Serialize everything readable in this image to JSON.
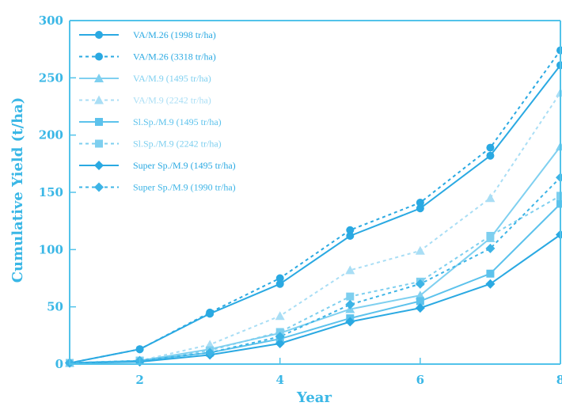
{
  "chart_data": {
    "type": "line",
    "xlabel": "Year",
    "ylabel": "Cumulative Yield (t/ha)",
    "xlim": [
      1,
      8
    ],
    "ylim": [
      0,
      300
    ],
    "xticks": [
      "2",
      "4",
      "6",
      "8"
    ],
    "yticks": [
      "0",
      "50",
      "100",
      "150",
      "200",
      "250",
      "300"
    ],
    "grid": false,
    "legend": "top-left",
    "x": [
      1,
      2,
      3,
      4,
      5,
      6,
      7,
      8
    ],
    "series": [
      {
        "name": "VA/M.26 (1998 tr/ha)",
        "color": "#2aa9e2",
        "dash": "solid",
        "marker": "circle",
        "values": [
          1,
          13,
          44,
          70,
          112,
          136,
          182,
          261
        ]
      },
      {
        "name": "VA/M.26 (3318 tr/ha)",
        "color": "#2aa9e2",
        "dash": "dotted",
        "marker": "circle",
        "values": [
          1,
          13,
          45,
          75,
          117,
          141,
          189,
          274
        ]
      },
      {
        "name": "VA/M.9 (1495 tr/ha)",
        "color": "#7fd0f0",
        "dash": "solid",
        "marker": "triangle",
        "values": [
          1,
          3,
          13,
          27,
          48,
          60,
          110,
          190
        ]
      },
      {
        "name": "VA/M.9 (2242 tr/ha)",
        "color": "#a9def5",
        "dash": "dotted",
        "marker": "triangle",
        "values": [
          1,
          3,
          17,
          42,
          82,
          99,
          145,
          237
        ]
      },
      {
        "name": "Sl.Sp./M.9 (1495 tr/ha)",
        "color": "#5cc2ec",
        "dash": "solid",
        "marker": "square",
        "values": [
          1,
          3,
          10,
          22,
          40,
          55,
          79,
          140
        ]
      },
      {
        "name": "Sl.Sp./M.9 (2242 tr/ha)",
        "color": "#7ecfef",
        "dash": "dotted",
        "marker": "square",
        "values": [
          1,
          3,
          12,
          28,
          59,
          72,
          112,
          147
        ]
      },
      {
        "name": "Super Sp./M.9 (1495 tr/ha)",
        "color": "#2aa9e2",
        "dash": "solid",
        "marker": "diamond",
        "values": [
          1,
          2,
          8,
          18,
          37,
          49,
          70,
          113
        ]
      },
      {
        "name": "Super Sp./M.9 (1990 tr/ha)",
        "color": "#3db4e6",
        "dash": "dotted",
        "marker": "diamond",
        "values": [
          1,
          3,
          10,
          24,
          52,
          70,
          101,
          163
        ]
      }
    ]
  }
}
